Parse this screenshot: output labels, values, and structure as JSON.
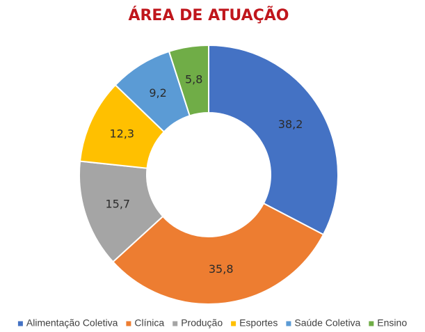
{
  "chart_data": {
    "type": "pie",
    "title": "ÁREA DE ATUAÇÃO",
    "categories": [
      "Alimentação Coletiva",
      "Clínica",
      "Produção",
      "Esportes",
      "Saúde Coletiva",
      "Ensino"
    ],
    "values": [
      38.2,
      35.8,
      15.7,
      12.3,
      9.2,
      5.8
    ],
    "value_labels": [
      "38,2",
      "35,8",
      "15,7",
      "12,3",
      "9,2",
      "5,8"
    ],
    "colors": [
      "#4472c4",
      "#ed7d31",
      "#a5a5a5",
      "#ffc000",
      "#5b9bd5",
      "#70ad47"
    ],
    "legend_placement": "bottom"
  }
}
